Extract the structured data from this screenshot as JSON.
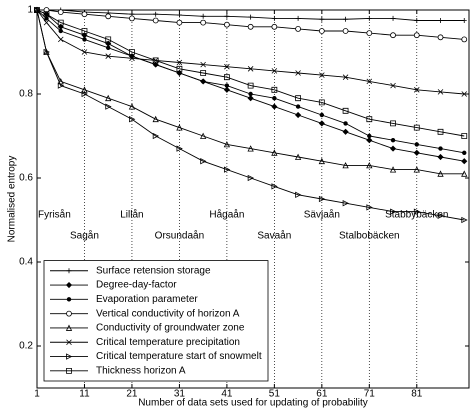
{
  "chart_data": {
    "type": "line",
    "xlabel": "Number of data sets used for updating of probability",
    "ylabel": "Normalised entropy",
    "x": [
      1,
      3,
      6,
      11,
      16,
      21,
      26,
      31,
      36,
      41,
      46,
      51,
      56,
      61,
      66,
      71,
      76,
      81,
      86,
      91
    ],
    "xlim": [
      1,
      92
    ],
    "xticks": [
      1,
      11,
      21,
      31,
      41,
      51,
      61,
      71,
      81
    ],
    "ylim": [
      0.1,
      1
    ],
    "yticks": [
      0.2,
      0.4,
      0.6,
      0.8,
      1
    ],
    "legend": "lower left",
    "series": [
      {
        "name": "Surface retension storage",
        "color": "#000000",
        "marker": "+",
        "values": [
          1,
          1,
          1,
          0.995,
          0.993,
          0.99,
          0.99,
          0.988,
          0.985,
          0.985,
          0.983,
          0.98,
          0.98,
          0.978,
          0.978,
          0.98,
          0.98,
          0.975,
          0.975,
          0.975
        ]
      },
      {
        "name": "Degree-day-factor",
        "color": "#000000",
        "marker": "diamond",
        "values": [
          1,
          0.99,
          0.96,
          0.94,
          0.92,
          0.89,
          0.87,
          0.85,
          0.83,
          0.81,
          0.79,
          0.77,
          0.75,
          0.73,
          0.71,
          0.69,
          0.67,
          0.66,
          0.65,
          0.64
        ]
      },
      {
        "name": "Evaporation parameter",
        "color": "#000000",
        "marker": "dot",
        "values": [
          1,
          0.98,
          0.95,
          0.93,
          0.91,
          0.89,
          0.87,
          0.85,
          0.83,
          0.82,
          0.8,
          0.79,
          0.77,
          0.75,
          0.73,
          0.7,
          0.69,
          0.68,
          0.67,
          0.66
        ]
      },
      {
        "name": "Vertical conductivity of horizon A",
        "color": "#000000",
        "marker": "o",
        "values": [
          1,
          1,
          0.995,
          0.99,
          0.985,
          0.98,
          0.975,
          0.97,
          0.97,
          0.965,
          0.96,
          0.96,
          0.955,
          0.95,
          0.95,
          0.945,
          0.94,
          0.94,
          0.935,
          0.93
        ]
      },
      {
        "name": "Conductivity of groundwater zone",
        "color": "#000000",
        "marker": "^",
        "values": [
          1,
          0.9,
          0.83,
          0.81,
          0.79,
          0.77,
          0.74,
          0.72,
          0.7,
          0.68,
          0.67,
          0.66,
          0.65,
          0.64,
          0.63,
          0.63,
          0.62,
          0.62,
          0.61,
          0.61
        ]
      },
      {
        "name": "Critical temperature precipitation",
        "color": "#000000",
        "marker": "x",
        "values": [
          1,
          0.97,
          0.93,
          0.9,
          0.89,
          0.885,
          0.88,
          0.875,
          0.87,
          0.865,
          0.86,
          0.855,
          0.85,
          0.845,
          0.84,
          0.83,
          0.82,
          0.81,
          0.805,
          0.8
        ]
      },
      {
        "name": "Critical temperature start of snowmelt",
        "color": "#000000",
        "marker": ">",
        "values": [
          1,
          0.9,
          0.82,
          0.8,
          0.77,
          0.74,
          0.7,
          0.67,
          0.64,
          0.62,
          0.6,
          0.58,
          0.56,
          0.55,
          0.54,
          0.53,
          0.52,
          0.52,
          0.51,
          0.5
        ]
      },
      {
        "name": "Thickness horizon A",
        "color": "#000000",
        "marker": "s",
        "values": [
          1,
          0.99,
          0.97,
          0.95,
          0.93,
          0.9,
          0.88,
          0.86,
          0.85,
          0.84,
          0.82,
          0.81,
          0.79,
          0.78,
          0.76,
          0.74,
          0.73,
          0.72,
          0.71,
          0.7
        ]
      }
    ],
    "annotations": [
      {
        "x": 1,
        "label": "Fyrisån"
      },
      {
        "x": 11,
        "label": "Sagån"
      },
      {
        "x": 21,
        "label": "Lillån"
      },
      {
        "x": 31,
        "label": "Orsundaån"
      },
      {
        "x": 41,
        "label": "Hågaån"
      },
      {
        "x": 51,
        "label": "Savaån"
      },
      {
        "x": 61,
        "label": "Sävjaån"
      },
      {
        "x": 71,
        "label": "Stalbobäcken"
      },
      {
        "x": 81,
        "label": "Stabbybäcken"
      }
    ]
  }
}
